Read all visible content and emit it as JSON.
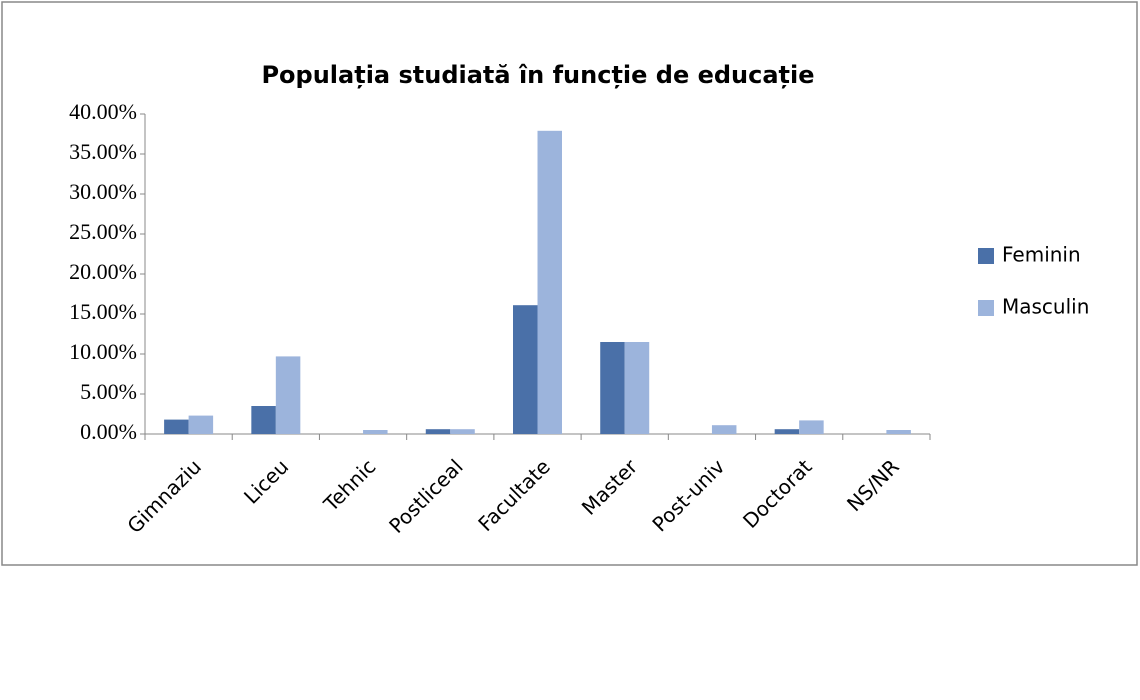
{
  "chart_data": {
    "type": "bar",
    "title": "Populația studiată în funcție de educație",
    "categories": [
      "Gimnaziu",
      "Liceu",
      "Tehnic",
      "Postliceal",
      "Facultate",
      "Master",
      "Post-univ",
      "Doctorat",
      "NS/NR"
    ],
    "series": [
      {
        "name": "Feminin",
        "color": "#4a70a8",
        "values": [
          1.8,
          3.5,
          0,
          0.6,
          16.1,
          11.5,
          0,
          0.6,
          0
        ]
      },
      {
        "name": "Masculin",
        "color": "#9cb4dc",
        "values": [
          2.3,
          9.7,
          0.5,
          0.6,
          37.9,
          11.5,
          1.1,
          1.7,
          0.5
        ]
      }
    ],
    "ylim": [
      0,
      40
    ],
    "yticks": [
      {
        "value": 0,
        "label": "0.00%"
      },
      {
        "value": 5,
        "label": "5.00%"
      },
      {
        "value": 10,
        "label": "10.00%"
      },
      {
        "value": 15,
        "label": "15.00%"
      },
      {
        "value": 20,
        "label": "20.00%"
      },
      {
        "value": 25,
        "label": "25.00%"
      },
      {
        "value": 30,
        "label": "30.00%"
      },
      {
        "value": 35,
        "label": "35.00%"
      },
      {
        "value": 40,
        "label": "40.00%"
      }
    ],
    "legend": "right"
  }
}
